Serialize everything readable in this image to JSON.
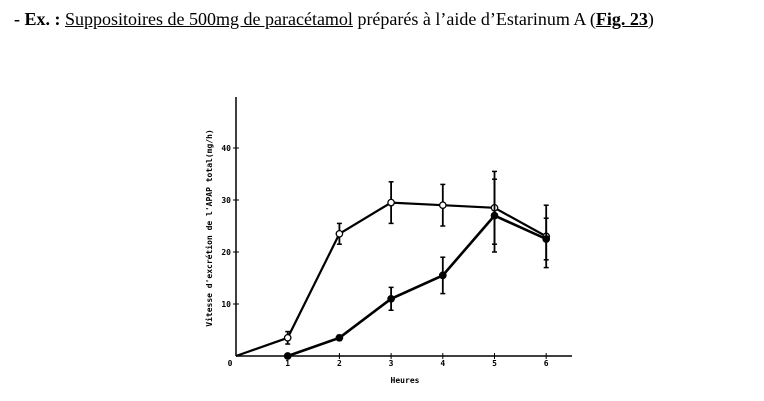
{
  "caption": {
    "prefix": "- Ex. :",
    "title": "Suppositoires de 500mg de paracétamol",
    "middle": " préparés à l’aide d’Estarinum A (",
    "fig": "Fig. 23",
    "suffix": ")"
  },
  "chart_data": {
    "type": "line",
    "title": "",
    "xlabel": "Heures",
    "ylabel": "Vitesse d'excrétion de l'APAP total(mg/h)",
    "xlim": [
      0,
      6.5
    ],
    "ylim": [
      0,
      50
    ],
    "xticks": [
      "0",
      "1",
      "2",
      "3",
      "4",
      "5",
      "6"
    ],
    "yticks": [
      "10",
      "20",
      "30",
      "40"
    ],
    "ytick_values": [
      10,
      20,
      30,
      40
    ],
    "series": [
      {
        "name": "open",
        "marker": "open-circle",
        "x": [
          0,
          1,
          2,
          3,
          4,
          5,
          6
        ],
        "y": [
          0,
          3.5,
          23.5,
          29.5,
          29,
          28.5,
          23
        ],
        "err": [
          0,
          1.2,
          2,
          4,
          4,
          7,
          6
        ]
      },
      {
        "name": "filled",
        "marker": "filled-circle",
        "x": [
          1,
          2,
          3,
          4,
          5,
          6
        ],
        "y": [
          0,
          3.5,
          11,
          15.5,
          27,
          22.5
        ],
        "err": [
          0,
          0.5,
          2.2,
          3.5,
          7,
          4
        ]
      }
    ]
  }
}
